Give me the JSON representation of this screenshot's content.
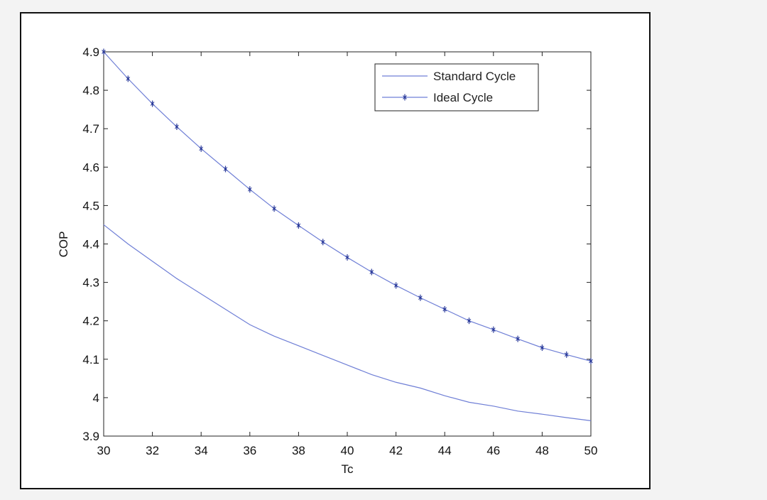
{
  "chart_data": {
    "type": "line",
    "title": "",
    "xlabel": "Tc",
    "ylabel": "COP",
    "xlim": [
      30,
      50
    ],
    "ylim": [
      3.9,
      4.9
    ],
    "xticks": [
      "30",
      "32",
      "34",
      "36",
      "38",
      "40",
      "42",
      "44",
      "46",
      "48",
      "50"
    ],
    "yticks": [
      "3.9",
      "4",
      "4.1",
      "4.2",
      "4.3",
      "4.4",
      "4.5",
      "4.6",
      "4.7",
      "4.8",
      "4.9"
    ],
    "grid": false,
    "legend_position": "top-right",
    "x": [
      30,
      31,
      32,
      33,
      34,
      35,
      36,
      37,
      38,
      39,
      40,
      41,
      42,
      43,
      44,
      45,
      46,
      47,
      48,
      49,
      50
    ],
    "series": [
      {
        "name": "Standard Cycle",
        "marker": "none",
        "values": [
          4.45,
          4.4,
          4.355,
          4.31,
          4.27,
          4.23,
          4.19,
          4.16,
          4.135,
          4.11,
          4.085,
          4.06,
          4.04,
          4.025,
          4.005,
          3.988,
          3.978,
          3.965,
          3.957,
          3.948,
          3.94
        ]
      },
      {
        "name": "Ideal Cycle",
        "marker": "star",
        "values": [
          4.9,
          4.83,
          4.765,
          4.705,
          4.648,
          4.595,
          4.542,
          4.492,
          4.448,
          4.405,
          4.365,
          4.327,
          4.292,
          4.26,
          4.23,
          4.2,
          4.177,
          4.153,
          4.13,
          4.112,
          4.095
        ]
      }
    ],
    "colors": {
      "line": "#6f7fd6",
      "marker": "#2a3a9a",
      "axis": "#111111"
    }
  }
}
